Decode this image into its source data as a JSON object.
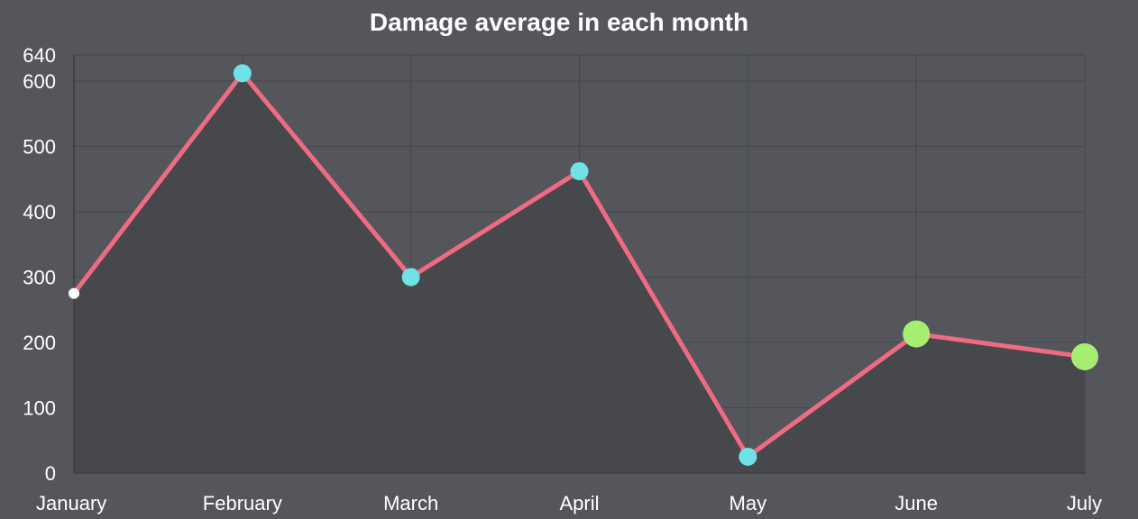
{
  "chart_data": {
    "type": "line",
    "title": "Damage average in each month",
    "categories": [
      "January",
      "February",
      "March",
      "April",
      "May",
      "June",
      "July"
    ],
    "series": [
      {
        "values": [
          275,
          612,
          300,
          462,
          25,
          213,
          178
        ],
        "line_color": "#ef6b82",
        "fill_color": "#47484c",
        "point_colors": [
          "#ffffff",
          "#6ee2e6",
          "#6ee2e6",
          "#6ee2e6",
          "#6ee2e6",
          "#a6ee72",
          "#a6ee72"
        ],
        "point_sizes": [
          "small",
          "medium",
          "medium",
          "medium",
          "medium",
          "large",
          "large"
        ]
      }
    ],
    "y_ticks": [
      0,
      100,
      200,
      300,
      400,
      500,
      600,
      640
    ],
    "ylim": [
      0,
      640
    ],
    "xlabel": "",
    "ylabel": "",
    "grid": true,
    "legend": "none",
    "background_color": "#54565c"
  }
}
